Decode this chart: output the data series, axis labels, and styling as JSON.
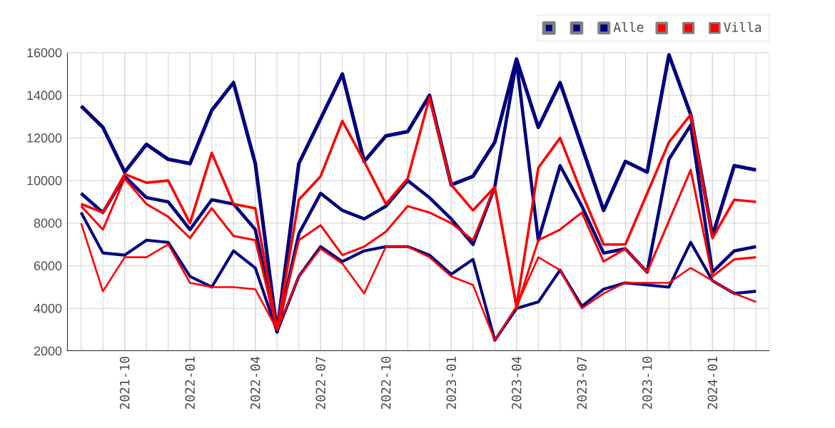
{
  "chart_data": {
    "type": "line",
    "x": [
      "2021-08",
      "2021-09",
      "2021-10",
      "2021-11",
      "2021-12",
      "2022-01",
      "2022-02",
      "2022-03",
      "2022-04",
      "2022-05",
      "2022-06",
      "2022-07",
      "2022-08",
      "2022-09",
      "2022-10",
      "2022-11",
      "2022-12",
      "2023-01",
      "2023-02",
      "2023-03",
      "2023-04",
      "2023-05",
      "2023-06",
      "2023-07",
      "2023-08",
      "2023-09",
      "2023-10",
      "2023-11",
      "2023-12",
      "2024-01",
      "2024-02",
      "2024-03"
    ],
    "series": [
      {
        "color": "#000080",
        "values": [
          13500,
          12500,
          10400,
          11700,
          11000,
          10800,
          13300,
          14600,
          10800,
          2900,
          10800,
          12900,
          15000,
          10900,
          12100,
          12300,
          14000,
          9800,
          10200,
          11800,
          15700,
          12500,
          14600,
          11600,
          8600,
          10900,
          10400,
          15900,
          13100,
          7400,
          10700,
          10500
        ]
      },
      {
        "color": "#000080",
        "values": [
          9400,
          8500,
          10200,
          9200,
          9000,
          7700,
          9100,
          8900,
          7700,
          2900,
          7500,
          9400,
          8600,
          8200,
          8800,
          10000,
          9200,
          8200,
          7000,
          9700,
          15600,
          7200,
          10700,
          8800,
          6600,
          6800,
          5700,
          11000,
          12600,
          5700,
          6700,
          6900
        ]
      },
      {
        "name": "Alle",
        "color": "#000080",
        "values": [
          8500,
          6600,
          6500,
          7200,
          7100,
          5500,
          5000,
          6700,
          5900,
          2900,
          5500,
          6900,
          6200,
          6700,
          6900,
          6900,
          6500,
          5600,
          6300,
          2500,
          4000,
          4300,
          5800,
          4100,
          4900,
          5200,
          5100,
          5000,
          7100,
          5300,
          4700,
          4800
        ]
      },
      {
        "color": "#ff0000",
        "values": [
          8900,
          8500,
          10300,
          9900,
          10000,
          8000,
          11300,
          8900,
          8700,
          3000,
          9100,
          10200,
          12800,
          10900,
          8900,
          10100,
          13900,
          9800,
          8600,
          9700,
          4100,
          10600,
          12000,
          9400,
          7000,
          7000,
          9400,
          11800,
          13100,
          7300,
          9100,
          9000
        ]
      },
      {
        "color": "#ff0000",
        "values": [
          8800,
          7700,
          10100,
          8900,
          8300,
          7300,
          8700,
          7400,
          7200,
          3000,
          7200,
          7900,
          6500,
          6900,
          7600,
          8800,
          8500,
          8000,
          7200,
          9700,
          4000,
          7200,
          7700,
          8500,
          6200,
          6800,
          5700,
          8100,
          10500,
          5500,
          6300,
          6400
        ]
      },
      {
        "name": "Villa",
        "color": "#ff0000",
        "values": [
          8000,
          4800,
          6400,
          6400,
          7000,
          5200,
          5000,
          5000,
          4900,
          3000,
          5500,
          6800,
          6100,
          4700,
          6900,
          6900,
          6400,
          5500,
          5100,
          2500,
          4100,
          6400,
          5800,
          4000,
          4700,
          5200,
          5200,
          5200,
          5900,
          5300,
          4700,
          4300
        ]
      }
    ],
    "xlim": [
      "2021-07-12",
      "2024-03-20"
    ],
    "xticks": [
      "2021-10",
      "2022-01",
      "2022-04",
      "2022-07",
      "2022-10",
      "2023-01",
      "2023-04",
      "2023-07",
      "2023-10",
      "2024-01"
    ],
    "ylim": [
      2000,
      16000
    ],
    "yticks": [
      2000,
      4000,
      6000,
      8000,
      10000,
      12000,
      14000,
      16000
    ],
    "grid": true,
    "legend": "top right",
    "marker": "none",
    "line_style": "solid"
  }
}
